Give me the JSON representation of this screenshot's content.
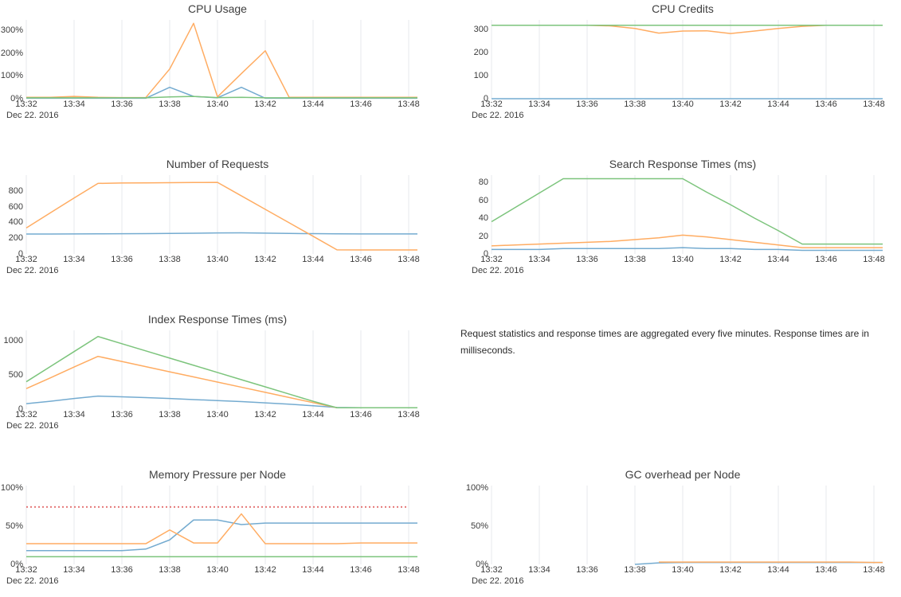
{
  "colors": {
    "blue": "#74abd0",
    "orange": "#ffac62",
    "green": "#7cc47c",
    "red": "#e57979",
    "grid": "#e7eaec",
    "title_text": "#3f3f3f",
    "tick_text": "#3b3b3b",
    "note_text": "#2b2b2b"
  },
  "note": {
    "text": "Request statistics and response times are aggregated every five minutes. Response times are in milliseconds."
  },
  "chart_data": {
    "type": "line",
    "grid": true,
    "legend": false,
    "x_categories": [
      "13:32",
      "13:33",
      "13:34",
      "13:35",
      "13:36",
      "13:37",
      "13:38",
      "13:39",
      "13:40",
      "13:41",
      "13:42",
      "13:43",
      "13:44",
      "13:45",
      "13:46",
      "13:47",
      "13:48"
    ],
    "x_tick_labels": [
      "13:32",
      "13:34",
      "13:36",
      "13:38",
      "13:40",
      "13:42",
      "13:44",
      "13:46",
      "13:48"
    ],
    "date_label": "Dec 22. 2016",
    "charts": [
      {
        "id": "cpu-usage",
        "title": "CPU Usage",
        "y_range": [
          0,
          345
        ],
        "y_ticks": [
          {
            "value": 0,
            "label": "0%"
          },
          {
            "value": 100,
            "label": "100%"
          },
          {
            "value": 200,
            "label": "200%"
          },
          {
            "value": 300,
            "label": "300%"
          }
        ],
        "series": [
          {
            "name": "blue",
            "color": "blue",
            "values": [
              2,
              2,
              2,
              2,
              2,
              2,
              50,
              10,
              4,
              50,
              2,
              2,
              2,
              2,
              2,
              2,
              2
            ]
          },
          {
            "name": "orange",
            "color": "orange",
            "values": [
              6,
              6,
              10,
              6,
              5,
              5,
              130,
              330,
              8,
              110,
              210,
              6,
              6,
              6,
              6,
              6,
              6
            ]
          },
          {
            "name": "green",
            "color": "green",
            "values": [
              4,
              4,
              4,
              4,
              4,
              4,
              8,
              10,
              5,
              6,
              4,
              4,
              4,
              4,
              4,
              4,
              4
            ]
          }
        ]
      },
      {
        "id": "cpu-credits",
        "title": "CPU Credits",
        "y_range": [
          0,
          340
        ],
        "y_ticks": [
          {
            "value": 0,
            "label": "0"
          },
          {
            "value": 100,
            "label": "100"
          },
          {
            "value": 200,
            "label": "200"
          },
          {
            "value": 300,
            "label": "300"
          }
        ],
        "series": [
          {
            "name": "blue",
            "color": "blue",
            "values": [
              0,
              0,
              0,
              0,
              0,
              0,
              0,
              0,
              0,
              0,
              0,
              0,
              0,
              0,
              0,
              0,
              0
            ]
          },
          {
            "name": "orange",
            "color": "orange",
            "values": [
              317,
              317,
              317,
              317,
              317,
              314,
              303,
              283,
              292,
              293,
              281,
              292,
              303,
              312,
              317,
              317,
              317
            ]
          },
          {
            "name": "green",
            "color": "green",
            "values": [
              317,
              317,
              317,
              317,
              317,
              317,
              317,
              317,
              317,
              317,
              317,
              317,
              317,
              317,
              317,
              317,
              317
            ]
          }
        ]
      },
      {
        "id": "number-of-requests",
        "title": "Number of Requests",
        "y_range": [
          0,
          1000
        ],
        "y_ticks": [
          {
            "value": 0,
            "label": "0"
          },
          {
            "value": 200,
            "label": "200"
          },
          {
            "value": 400,
            "label": "400"
          },
          {
            "value": 600,
            "label": "600"
          },
          {
            "value": 800,
            "label": "800"
          }
        ],
        "series": [
          {
            "name": "blue",
            "color": "blue",
            "values": [
              253,
              253,
              254,
              255,
              256,
              258,
              260,
              263,
              266,
              268,
              264,
              260,
              257,
              255,
              254,
              254,
              254
            ]
          },
          {
            "name": "orange",
            "color": "orange",
            "values": [
              330,
              520,
              710,
              895,
              900,
              902,
              904,
              906,
              908,
              737,
              566,
              395,
              224,
              52,
              50,
              50,
              50
            ]
          }
        ]
      },
      {
        "id": "search-response-times",
        "title": "Search Response Times (ms)",
        "y_range": [
          0,
          88
        ],
        "y_ticks": [
          {
            "value": 0,
            "label": "0"
          },
          {
            "value": 20,
            "label": "20"
          },
          {
            "value": 40,
            "label": "40"
          },
          {
            "value": 60,
            "label": "60"
          },
          {
            "value": 80,
            "label": "80"
          }
        ],
        "series": [
          {
            "name": "blue",
            "color": "blue",
            "values": [
              5,
              5,
              5,
              6,
              6,
              6,
              6,
              6,
              7,
              6,
              6,
              5,
              5,
              4,
              4,
              4,
              4
            ]
          },
          {
            "name": "orange",
            "color": "orange",
            "values": [
              9,
              10,
              11,
              12,
              13,
              14,
              16,
              18,
              21,
              19,
              16,
              13,
              10,
              7,
              7,
              7,
              7
            ]
          },
          {
            "name": "green",
            "color": "green",
            "values": [
              36,
              52,
              68,
              84,
              84,
              84,
              84,
              84,
              84,
              69,
              55,
              40,
              26,
              11,
              11,
              11,
              11
            ]
          }
        ]
      },
      {
        "id": "index-response-times",
        "title": "Index Response Times (ms)",
        "y_range": [
          0,
          1150
        ],
        "y_ticks": [
          {
            "value": 0,
            "label": "0"
          },
          {
            "value": 500,
            "label": "500"
          },
          {
            "value": 1000,
            "label": "1000"
          }
        ],
        "series": [
          {
            "name": "blue",
            "color": "blue",
            "values": [
              80,
              115,
              155,
              190,
              180,
              168,
              155,
              140,
              125,
              110,
              92,
              72,
              50,
              25,
              20,
              20,
              20
            ]
          },
          {
            "name": "orange",
            "color": "orange",
            "values": [
              300,
              455,
              615,
              770,
              695,
              620,
              545,
              470,
              395,
              320,
              245,
              170,
              95,
              20,
              20,
              20,
              20
            ]
          },
          {
            "name": "green",
            "color": "green",
            "values": [
              400,
              620,
              840,
              1060,
              955,
              850,
              745,
              640,
              535,
              430,
              325,
              220,
              115,
              20,
              20,
              20,
              20
            ]
          }
        ]
      },
      {
        "id": "memory-pressure-per-node",
        "title": "Memory Pressure per Node",
        "y_range": [
          0,
          103
        ],
        "y_ticks": [
          {
            "value": 0,
            "label": "0%"
          },
          {
            "value": 50,
            "label": "50%"
          },
          {
            "value": 100,
            "label": "100%"
          }
        ],
        "threshold": {
          "value": 75,
          "color": "red",
          "style": "dotted"
        },
        "series": [
          {
            "name": "blue",
            "color": "blue",
            "values": [
              18,
              18,
              18,
              18,
              18,
              20,
              32,
              58,
              58,
              52,
              54,
              54,
              54,
              54,
              54,
              54,
              54
            ]
          },
          {
            "name": "orange",
            "color": "orange",
            "values": [
              27,
              27,
              27,
              27,
              27,
              27,
              45,
              28,
              28,
              66,
              27,
              27,
              27,
              27,
              28,
              28,
              28
            ]
          },
          {
            "name": "green",
            "color": "green",
            "values": [
              10,
              10,
              10,
              10,
              10,
              10,
              10,
              10,
              10,
              10,
              10,
              10,
              10,
              10,
              10,
              10,
              10
            ]
          }
        ]
      },
      {
        "id": "gc-overhead-per-node",
        "title": "GC overhead per Node",
        "y_range": [
          0,
          103
        ],
        "y_ticks": [
          {
            "value": 0,
            "label": "0%"
          },
          {
            "value": 50,
            "label": "50%"
          },
          {
            "value": 100,
            "label": "100%"
          }
        ],
        "series": [
          {
            "name": "blue",
            "color": "blue",
            "values": [
              null,
              null,
              null,
              null,
              null,
              null,
              0,
              2,
              2.5,
              2.5,
              2.5,
              2.5,
              2.5,
              2.5,
              2.5,
              2.5,
              2.5
            ]
          },
          {
            "name": "orange",
            "color": "orange",
            "values": [
              null,
              null,
              null,
              null,
              null,
              null,
              null,
              3,
              3,
              3,
              3,
              3,
              3,
              3,
              3,
              3,
              2.5
            ]
          }
        ]
      }
    ]
  }
}
